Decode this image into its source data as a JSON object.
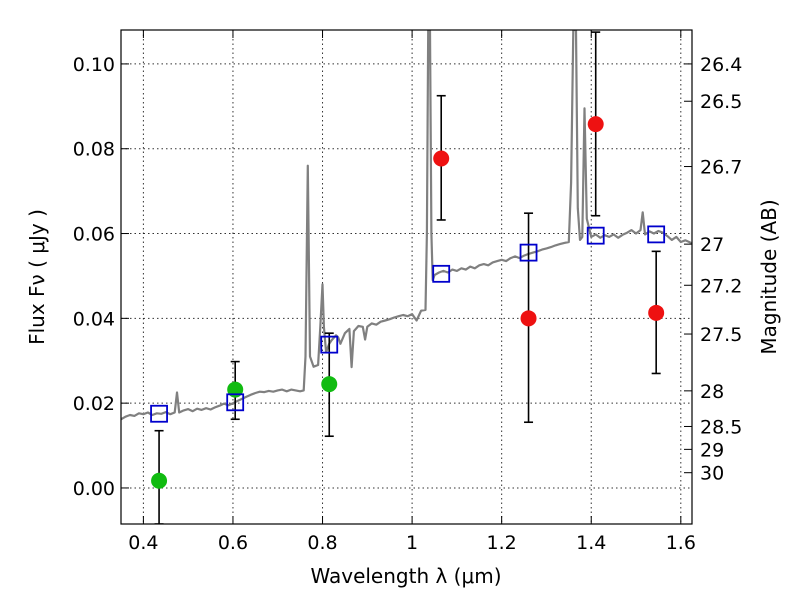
{
  "chart_data": {
    "type": "scatter",
    "xlabel": "Wavelength  λ (μm)",
    "ylabel": "Flux  Fν  ( μJy )",
    "y2label": "Magnitude (AB)",
    "xlim": [
      0.35,
      1.625
    ],
    "ylim": [
      -0.0085,
      0.108
    ],
    "grid": true,
    "x_ticks": [
      {
        "value": 0.4,
        "label": "0.4"
      },
      {
        "value": 0.6,
        "label": "0.6"
      },
      {
        "value": 0.8,
        "label": "0.8"
      },
      {
        "value": 1.0,
        "label": "1"
      },
      {
        "value": 1.2,
        "label": "1.2"
      },
      {
        "value": 1.4,
        "label": "1.4"
      },
      {
        "value": 1.6,
        "label": "1.6"
      }
    ],
    "y_ticks": [
      {
        "value": 0.0,
        "label": "0.00"
      },
      {
        "value": 0.02,
        "label": "0.02"
      },
      {
        "value": 0.04,
        "label": "0.04"
      },
      {
        "value": 0.06,
        "label": "0.06"
      },
      {
        "value": 0.08,
        "label": "0.08"
      },
      {
        "value": 0.1,
        "label": "0.10"
      }
    ],
    "y2_ticks": [
      {
        "label": "26.4",
        "flux": 0.1
      },
      {
        "label": "26.5",
        "flux": 0.0912
      },
      {
        "label": "26.7",
        "flux": 0.0758
      },
      {
        "label": "27",
        "flux": 0.0575
      },
      {
        "label": "27.2",
        "flux": 0.0478
      },
      {
        "label": "27.5",
        "flux": 0.0363
      },
      {
        "label": "28",
        "flux": 0.0229
      },
      {
        "label": "28.5",
        "flux": 0.0145
      },
      {
        "label": "29",
        "flux": 0.0091
      },
      {
        "label": "30",
        "flux": 0.0036
      }
    ],
    "colors": {
      "spectrum": "#808080",
      "green": "#11bb11",
      "red": "#ee1111",
      "model": "#0000cc",
      "errorbar": "#000000"
    },
    "series": [
      {
        "name": "model-spectrum",
        "kind": "line",
        "points": [
          [
            0.35,
            0.0162
          ],
          [
            0.36,
            0.0168
          ],
          [
            0.37,
            0.0172
          ],
          [
            0.38,
            0.017
          ],
          [
            0.39,
            0.0176
          ],
          [
            0.4,
            0.0174
          ],
          [
            0.41,
            0.0178
          ],
          [
            0.42,
            0.0172
          ],
          [
            0.43,
            0.0176
          ],
          [
            0.44,
            0.0175
          ],
          [
            0.45,
            0.0179
          ],
          [
            0.46,
            0.0174
          ],
          [
            0.47,
            0.0178
          ],
          [
            0.475,
            0.0225
          ],
          [
            0.48,
            0.0178
          ],
          [
            0.49,
            0.0183
          ],
          [
            0.5,
            0.0186
          ],
          [
            0.51,
            0.0181
          ],
          [
            0.52,
            0.0187
          ],
          [
            0.53,
            0.0184
          ],
          [
            0.54,
            0.0188
          ],
          [
            0.55,
            0.0185
          ],
          [
            0.56,
            0.019
          ],
          [
            0.57,
            0.0194
          ],
          [
            0.58,
            0.0199
          ],
          [
            0.59,
            0.0195
          ],
          [
            0.6,
            0.02
          ],
          [
            0.61,
            0.0205
          ],
          [
            0.62,
            0.021
          ],
          [
            0.63,
            0.0215
          ],
          [
            0.64,
            0.022
          ],
          [
            0.65,
            0.0224
          ],
          [
            0.66,
            0.0227
          ],
          [
            0.67,
            0.0226
          ],
          [
            0.68,
            0.0229
          ],
          [
            0.69,
            0.0227
          ],
          [
            0.7,
            0.023
          ],
          [
            0.71,
            0.0232
          ],
          [
            0.72,
            0.0228
          ],
          [
            0.73,
            0.0232
          ],
          [
            0.74,
            0.023
          ],
          [
            0.75,
            0.0228
          ],
          [
            0.758,
            0.023
          ],
          [
            0.762,
            0.031
          ],
          [
            0.767,
            0.076
          ],
          [
            0.772,
            0.031
          ],
          [
            0.78,
            0.0286
          ],
          [
            0.79,
            0.029
          ],
          [
            0.795,
            0.038
          ],
          [
            0.8,
            0.048
          ],
          [
            0.803,
            0.038
          ],
          [
            0.808,
            0.032
          ],
          [
            0.815,
            0.034
          ],
          [
            0.82,
            0.0348
          ],
          [
            0.83,
            0.036
          ],
          [
            0.835,
            0.0355
          ],
          [
            0.84,
            0.034
          ],
          [
            0.85,
            0.0365
          ],
          [
            0.86,
            0.0375
          ],
          [
            0.865,
            0.0285
          ],
          [
            0.87,
            0.037
          ],
          [
            0.88,
            0.0382
          ],
          [
            0.89,
            0.038
          ],
          [
            0.895,
            0.035
          ],
          [
            0.9,
            0.038
          ],
          [
            0.91,
            0.0388
          ],
          [
            0.92,
            0.0385
          ],
          [
            0.93,
            0.0392
          ],
          [
            0.94,
            0.0395
          ],
          [
            0.95,
            0.0398
          ],
          [
            0.96,
            0.0402
          ],
          [
            0.97,
            0.0405
          ],
          [
            0.98,
            0.0408
          ],
          [
            0.99,
            0.0405
          ],
          [
            1.0,
            0.041
          ],
          [
            1.01,
            0.0395
          ],
          [
            1.02,
            0.0418
          ],
          [
            1.03,
            0.042
          ],
          [
            1.033,
            0.06
          ],
          [
            1.036,
            0.108
          ],
          [
            1.04,
            0.108
          ],
          [
            1.043,
            0.06
          ],
          [
            1.046,
            0.049
          ],
          [
            1.05,
            0.0502
          ],
          [
            1.06,
            0.0508
          ],
          [
            1.07,
            0.0512
          ],
          [
            1.08,
            0.0508
          ],
          [
            1.09,
            0.0515
          ],
          [
            1.1,
            0.0512
          ],
          [
            1.11,
            0.0518
          ],
          [
            1.12,
            0.0515
          ],
          [
            1.13,
            0.0522
          ],
          [
            1.14,
            0.0518
          ],
          [
            1.15,
            0.0525
          ],
          [
            1.16,
            0.0528
          ],
          [
            1.17,
            0.0525
          ],
          [
            1.18,
            0.0532
          ],
          [
            1.19,
            0.0535
          ],
          [
            1.2,
            0.0538
          ],
          [
            1.21,
            0.0535
          ],
          [
            1.22,
            0.0542
          ],
          [
            1.23,
            0.0546
          ],
          [
            1.24,
            0.0542
          ],
          [
            1.25,
            0.0548
          ],
          [
            1.26,
            0.0552
          ],
          [
            1.27,
            0.0555
          ],
          [
            1.28,
            0.0558
          ],
          [
            1.29,
            0.0562
          ],
          [
            1.3,
            0.0565
          ],
          [
            1.31,
            0.0568
          ],
          [
            1.32,
            0.0572
          ],
          [
            1.33,
            0.0575
          ],
          [
            1.34,
            0.0578
          ],
          [
            1.35,
            0.058
          ],
          [
            1.355,
            0.072
          ],
          [
            1.36,
            0.108
          ],
          [
            1.366,
            0.108
          ],
          [
            1.37,
            0.066
          ],
          [
            1.375,
            0.0585
          ],
          [
            1.38,
            0.0592
          ],
          [
            1.385,
            0.0895
          ],
          [
            1.39,
            0.0635
          ],
          [
            1.4,
            0.0592
          ],
          [
            1.41,
            0.0598
          ],
          [
            1.42,
            0.059
          ],
          [
            1.43,
            0.0596
          ],
          [
            1.44,
            0.0592
          ],
          [
            1.45,
            0.0598
          ],
          [
            1.46,
            0.059
          ],
          [
            1.47,
            0.0597
          ],
          [
            1.48,
            0.0602
          ],
          [
            1.49,
            0.0608
          ],
          [
            1.5,
            0.06
          ],
          [
            1.51,
            0.0608
          ],
          [
            1.515,
            0.065
          ],
          [
            1.52,
            0.0598
          ],
          [
            1.53,
            0.0605
          ],
          [
            1.54,
            0.06
          ],
          [
            1.55,
            0.0606
          ],
          [
            1.56,
            0.0602
          ],
          [
            1.57,
            0.0594
          ],
          [
            1.58,
            0.0585
          ],
          [
            1.59,
            0.0592
          ],
          [
            1.6,
            0.058
          ],
          [
            1.61,
            0.0584
          ],
          [
            1.625,
            0.0577
          ]
        ]
      },
      {
        "name": "observed-green",
        "kind": "errorbar",
        "points": [
          {
            "x": 0.435,
            "y": 0.0017,
            "ylow": -0.0085,
            "yhigh": 0.0135
          },
          {
            "x": 0.605,
            "y": 0.0232,
            "ylow": 0.0162,
            "yhigh": 0.0298
          },
          {
            "x": 0.815,
            "y": 0.0245,
            "ylow": 0.0122,
            "yhigh": 0.0365
          }
        ]
      },
      {
        "name": "observed-red",
        "kind": "errorbar",
        "points": [
          {
            "x": 1.065,
            "y": 0.0777,
            "ylow": 0.0632,
            "yhigh": 0.0925
          },
          {
            "x": 1.26,
            "y": 0.04,
            "ylow": 0.0155,
            "yhigh": 0.0648
          },
          {
            "x": 1.41,
            "y": 0.0858,
            "ylow": 0.0642,
            "yhigh": 0.1075
          },
          {
            "x": 1.545,
            "y": 0.0413,
            "ylow": 0.027,
            "yhigh": 0.0558
          }
        ]
      },
      {
        "name": "model-photometry",
        "kind": "square",
        "points": [
          {
            "x": 0.435,
            "y": 0.0175
          },
          {
            "x": 0.605,
            "y": 0.0202
          },
          {
            "x": 0.815,
            "y": 0.0338
          },
          {
            "x": 1.065,
            "y": 0.0505
          },
          {
            "x": 1.26,
            "y": 0.0555
          },
          {
            "x": 1.41,
            "y": 0.0595
          },
          {
            "x": 1.545,
            "y": 0.0598
          }
        ]
      }
    ]
  }
}
